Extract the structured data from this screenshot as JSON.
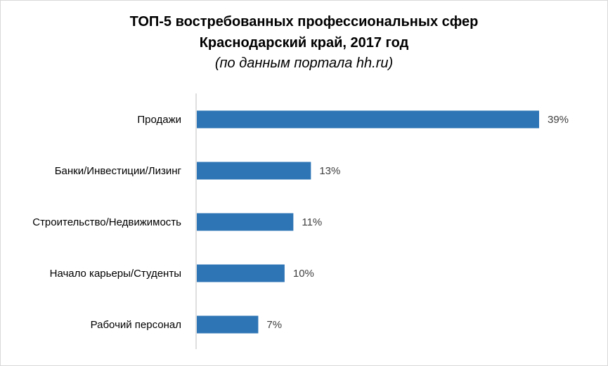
{
  "chart_data": {
    "type": "bar",
    "orientation": "horizontal",
    "title_line1": "ТОП-5 востребованных профессиональных сфер",
    "title_line2": "Краснодарский край, 2017 год",
    "subtitle": "(по данным портала hh.ru)",
    "categories": [
      "Продажи",
      "Банки/Инвестиции/Лизинг",
      "Строительство/Недвижимость",
      "Начало карьеры/Студенты",
      "Рабочий персонал"
    ],
    "values": [
      39,
      13,
      11,
      10,
      7
    ],
    "value_labels": [
      "39%",
      "13%",
      "11%",
      "10%",
      "7%"
    ],
    "xlim": [
      0,
      39
    ],
    "bar_color": "#2e75b6",
    "axis_color": "#bfbfbf",
    "grid": false,
    "legend": "none"
  }
}
